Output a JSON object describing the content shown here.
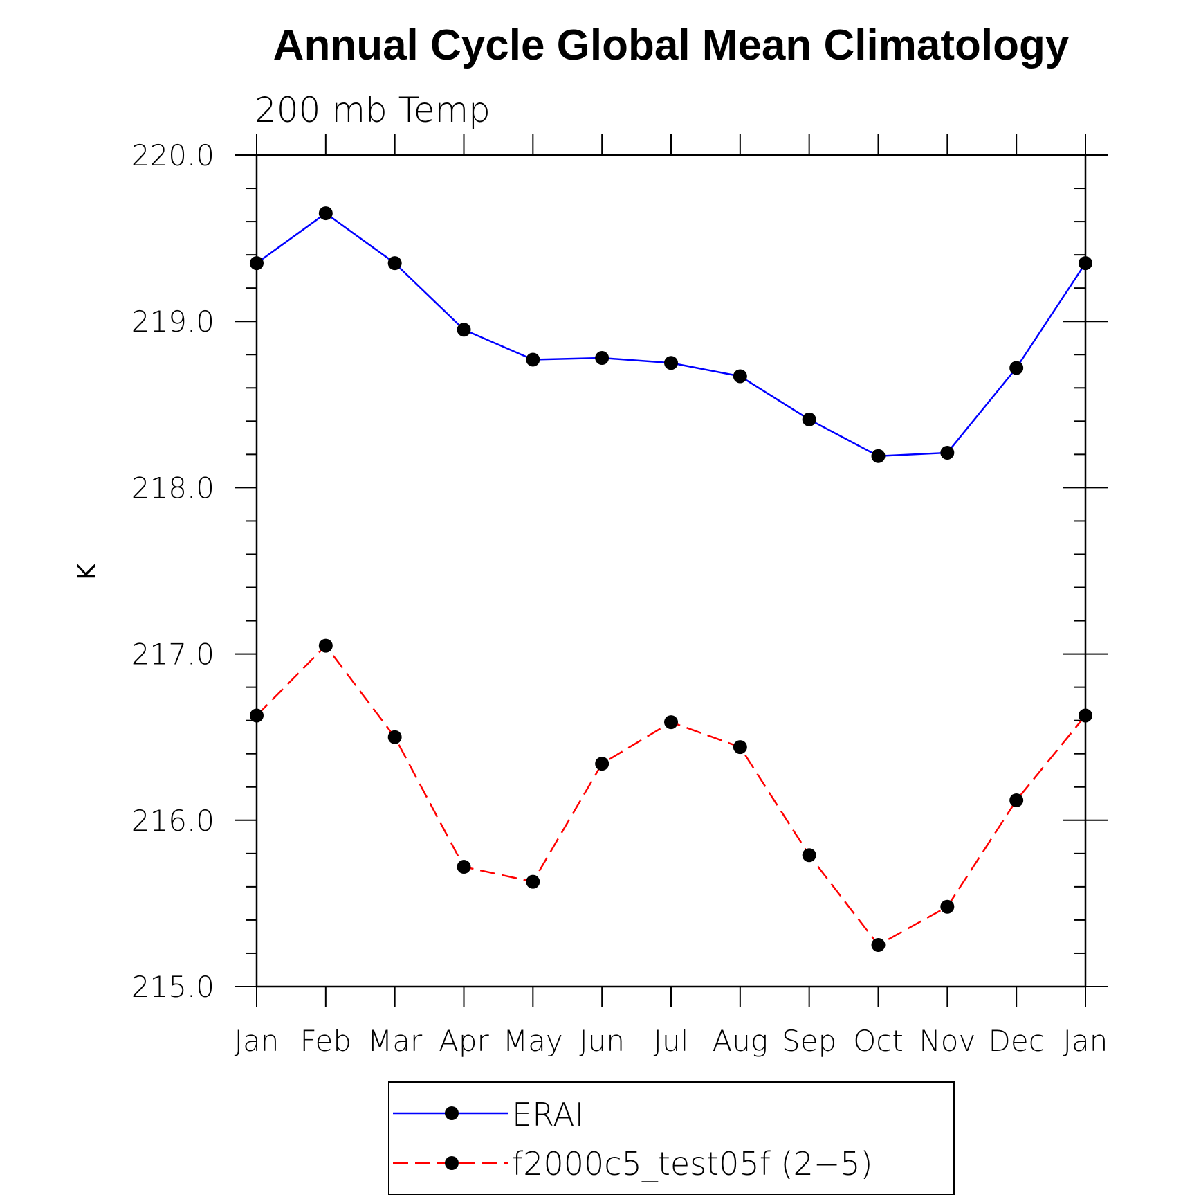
{
  "chart_data": {
    "type": "line",
    "title": "Annual Cycle Global Mean Climatology",
    "subtitle": "200 mb Temp",
    "ylabel": "K",
    "xlabel": "",
    "categories": [
      "Jan",
      "Feb",
      "Mar",
      "Apr",
      "May",
      "Jun",
      "Jul",
      "Aug",
      "Sep",
      "Oct",
      "Nov",
      "Dec",
      "Jan"
    ],
    "ylim": [
      215.0,
      220.0
    ],
    "yticks": [
      "215.0",
      "216.0",
      "217.0",
      "218.0",
      "219.0",
      "220.0"
    ],
    "grid": false,
    "legend_position": "bottom",
    "series": [
      {
        "name": "ERAI",
        "color": "#0000ff",
        "style": "solid",
        "values": [
          219.35,
          219.65,
          219.35,
          218.95,
          218.77,
          218.78,
          218.75,
          218.67,
          218.41,
          218.19,
          218.21,
          218.72,
          219.35
        ]
      },
      {
        "name": "f2000c5_test05f (2−5)",
        "color": "#ff0000",
        "style": "dashed",
        "values": [
          216.63,
          217.05,
          216.5,
          215.72,
          215.63,
          216.34,
          216.59,
          216.44,
          215.79,
          215.25,
          215.48,
          216.12,
          216.63
        ]
      }
    ]
  }
}
